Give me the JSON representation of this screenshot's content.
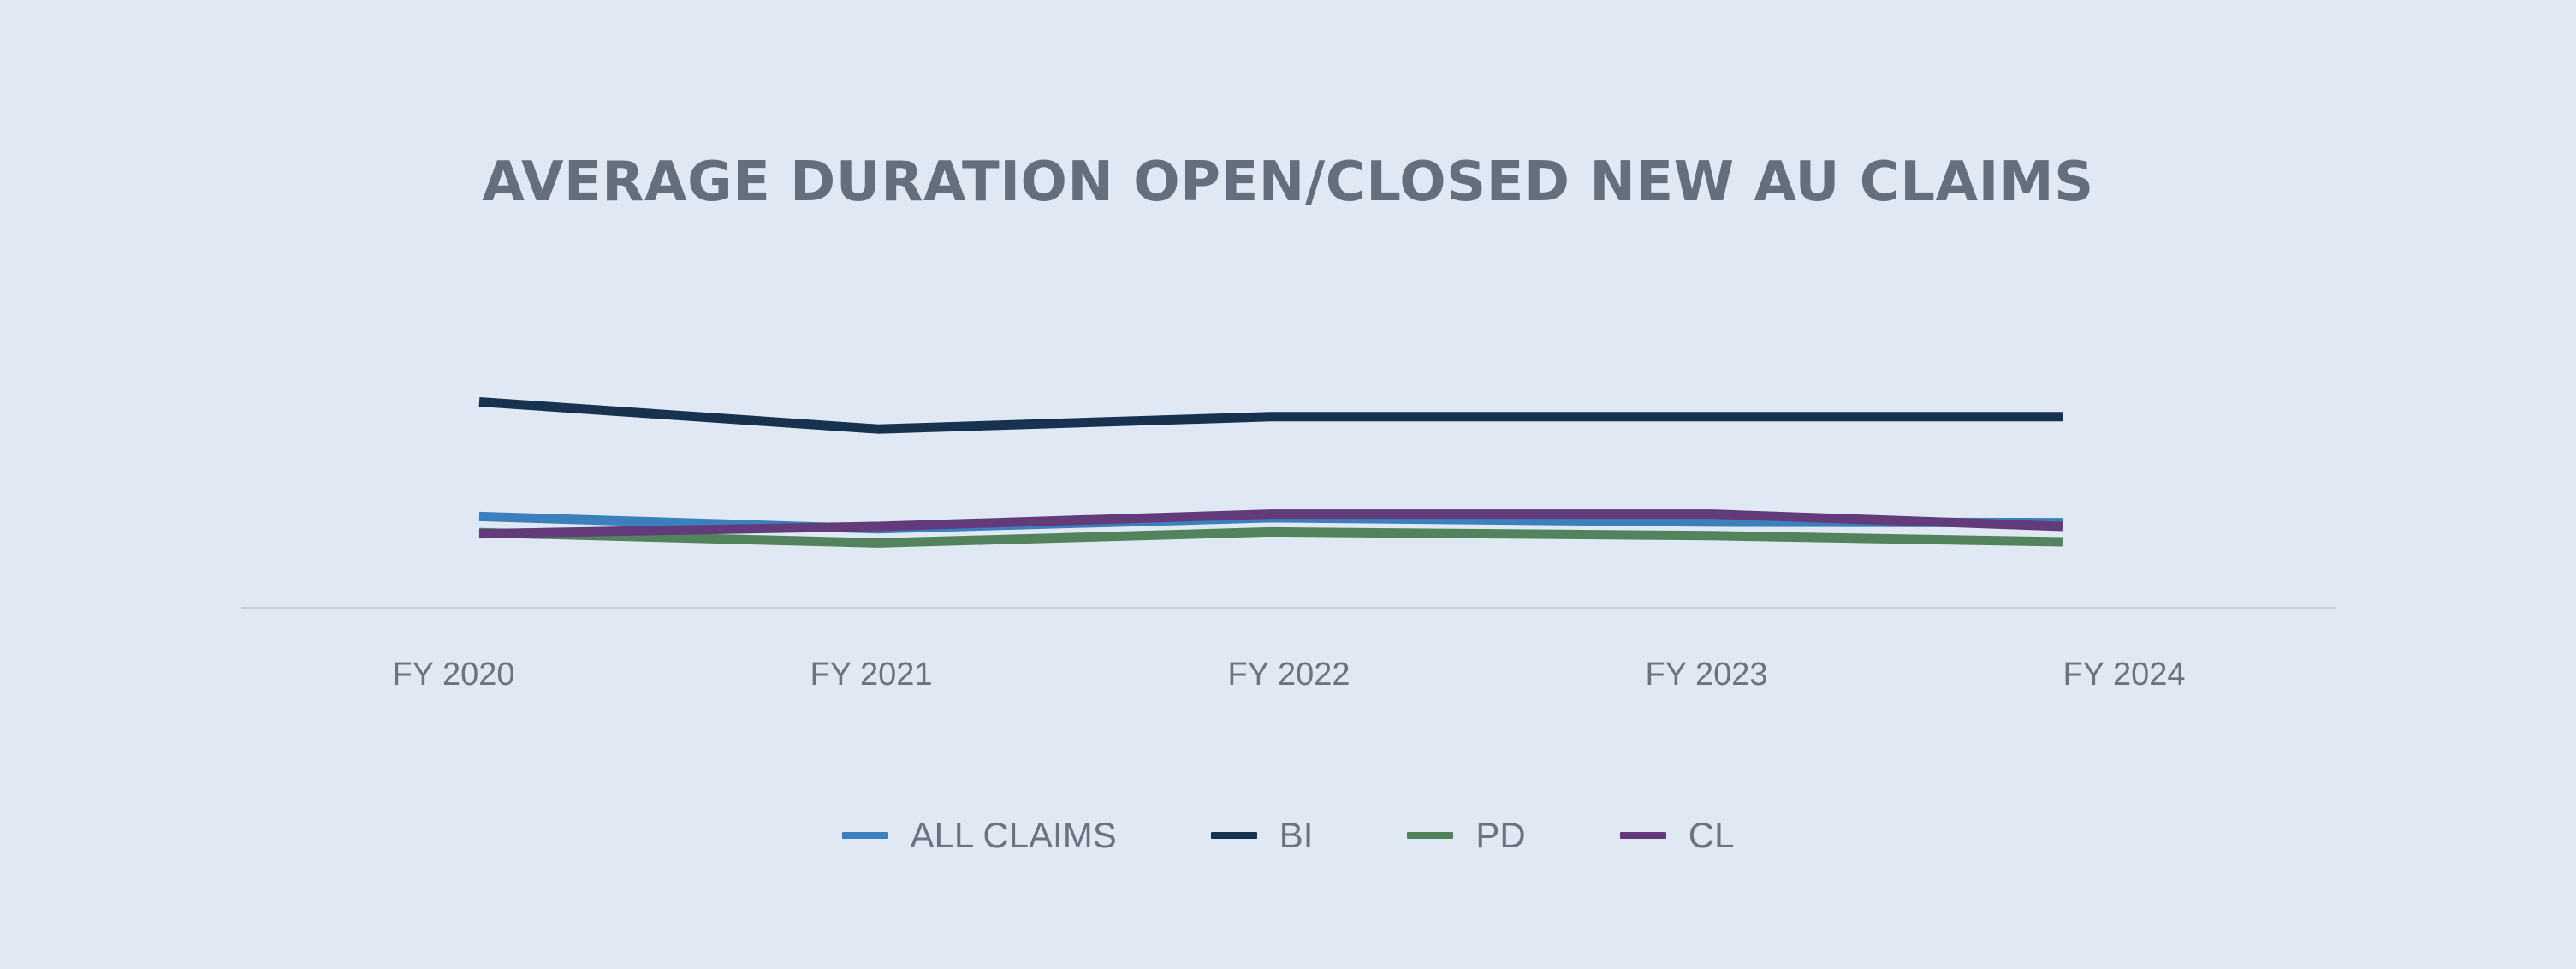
{
  "chart_data": {
    "type": "line",
    "title": "AVERAGE DURATION OPEN/CLOSED NEW AU CLAIMS",
    "xlabel": "",
    "ylabel": "",
    "categories": [
      "FY 2020",
      "FY 2021",
      "FY 2022",
      "FY 2023",
      "FY 2024"
    ],
    "ylim": [
      0,
      50
    ],
    "grid": false,
    "legend_position": "bottom",
    "series": [
      {
        "name": "ALL CLAIMS",
        "color": "#3b7fbd",
        "values": [
          14.8,
          12.8,
          14.6,
          13.9,
          13.8
        ]
      },
      {
        "name": "BI",
        "color": "#16324f",
        "values": [
          33.4,
          29.0,
          31.0,
          31.0,
          31.0
        ]
      },
      {
        "name": "PD",
        "color": "#52835d",
        "values": [
          12.2,
          10.5,
          12.3,
          11.7,
          10.7
        ]
      },
      {
        "name": "CL",
        "color": "#643b7a",
        "values": [
          12.0,
          13.2,
          15.2,
          15.2,
          13.2
        ]
      }
    ]
  }
}
